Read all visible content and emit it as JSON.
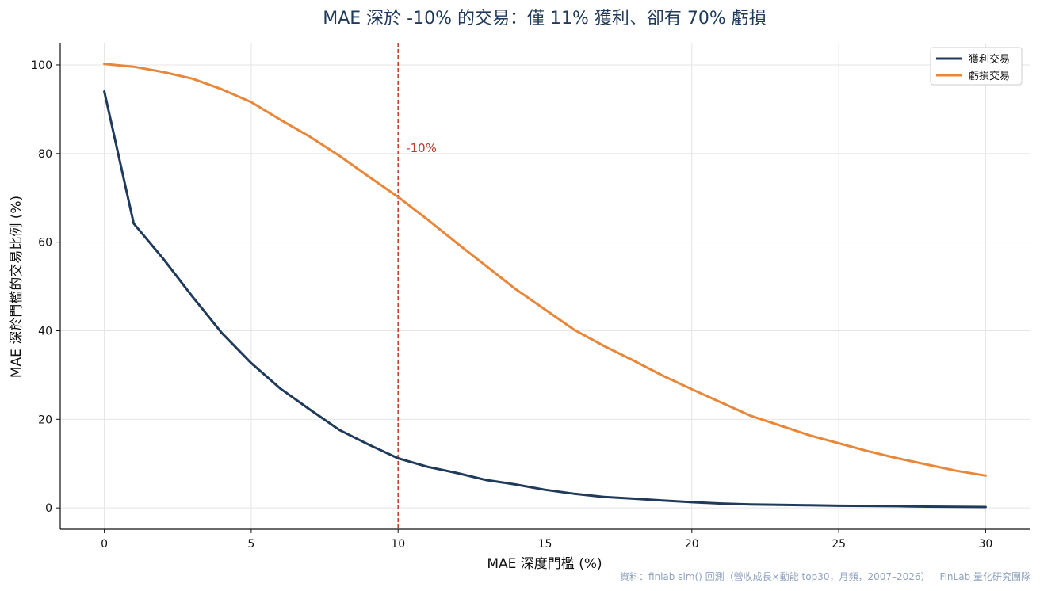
{
  "chart_data": {
    "type": "line",
    "title": "MAE 深於 -10% 的交易：僅 11% 獲利、卻有 70% 虧損",
    "xlabel": "MAE 深度門檻 (%)",
    "ylabel": "MAE 深於門檻的交易比例 (%)",
    "xlim": [
      -1.5,
      31.5
    ],
    "ylim": [
      -4.8,
      105
    ],
    "xticks": [
      0,
      5,
      10,
      15,
      20,
      25,
      30
    ],
    "yticks": [
      0,
      20,
      40,
      60,
      80,
      100
    ],
    "grid": true,
    "legend_position": "top-right",
    "x": [
      0,
      1,
      2,
      3,
      4,
      5,
      6,
      7,
      8,
      9,
      10,
      11,
      12,
      13,
      14,
      15,
      16,
      17,
      18,
      19,
      20,
      21,
      22,
      23,
      24,
      25,
      26,
      27,
      28,
      29,
      30
    ],
    "series": [
      {
        "name": "獲利交易",
        "color": "#1f3a5a",
        "values": [
          94,
          64.2,
          56.3,
          47.7,
          39.5,
          32.7,
          26.9,
          22.2,
          17.6,
          14.3,
          11.2,
          9.3,
          7.9,
          6.3,
          5.3,
          4.1,
          3.2,
          2.5,
          2.1,
          1.7,
          1.3,
          1.0,
          0.8,
          0.7,
          0.6,
          0.5,
          0.45,
          0.4,
          0.3,
          0.25,
          0.2
        ]
      },
      {
        "name": "虧損交易",
        "color": "#e8873a",
        "values": [
          100.2,
          99.6,
          98.4,
          96.9,
          94.5,
          91.6,
          87.6,
          83.8,
          79.5,
          74.8,
          70.2,
          65.1,
          59.8,
          54.6,
          49.4,
          44.8,
          40.2,
          36.6,
          33.3,
          29.9,
          26.8,
          23.8,
          20.8,
          18.6,
          16.4,
          14.6,
          12.8,
          11.2,
          9.8,
          8.4,
          7.3
        ]
      }
    ],
    "vline": {
      "x": 10,
      "label": "-10%",
      "color": "#c0392b"
    },
    "source": "資料：finlab sim() 回測（營收成長×動能 top30，月頻，2007–2026）｜FinLab 量化研究團隊"
  }
}
